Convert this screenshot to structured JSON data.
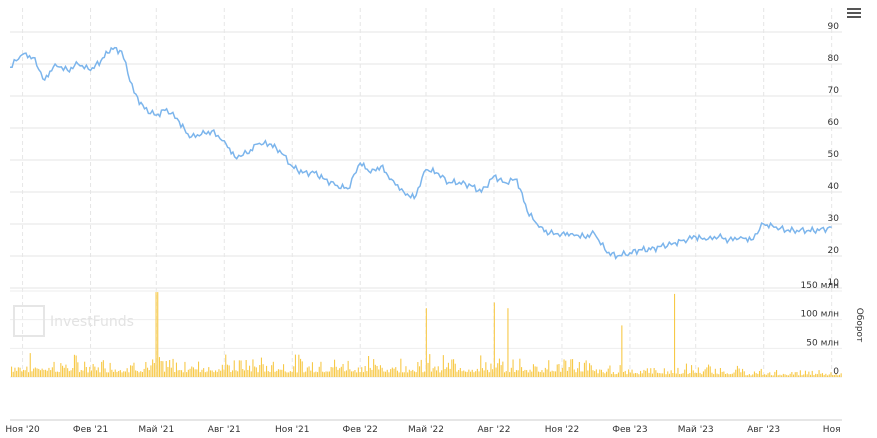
{
  "chart_data": [
    {
      "type": "line",
      "series": [
        {
          "color": "#7cb5ec",
          "x": [
            "2020-10-15",
            "2020-11-01",
            "2020-11-15",
            "2020-12-01",
            "2020-12-15",
            "2021-01-01",
            "2021-01-15",
            "2021-02-01",
            "2021-02-15",
            "2021-03-01",
            "2021-03-15",
            "2021-04-01",
            "2021-04-15",
            "2021-05-01",
            "2021-05-15",
            "2021-06-01",
            "2021-06-15",
            "2021-07-01",
            "2021-07-15",
            "2021-08-01",
            "2021-08-15",
            "2021-09-01",
            "2021-09-15",
            "2021-10-01",
            "2021-10-15",
            "2021-11-01",
            "2021-11-15",
            "2021-12-01",
            "2021-12-15",
            "2022-01-01",
            "2022-01-15",
            "2022-02-01",
            "2022-02-15",
            "2022-03-01",
            "2022-03-15",
            "2022-04-01",
            "2022-04-15",
            "2022-05-01",
            "2022-05-15",
            "2022-06-01",
            "2022-06-15",
            "2022-07-01",
            "2022-07-15",
            "2022-08-01",
            "2022-08-15",
            "2022-09-01",
            "2022-09-15",
            "2022-10-01",
            "2022-10-15",
            "2022-11-01",
            "2022-11-15",
            "2022-12-01",
            "2022-12-15",
            "2023-01-01",
            "2023-01-15",
            "2023-02-01",
            "2023-02-15",
            "2023-03-01",
            "2023-03-15",
            "2023-04-01",
            "2023-04-15",
            "2023-05-01",
            "2023-05-15",
            "2023-06-01",
            "2023-06-15",
            "2023-07-01",
            "2023-07-15",
            "2023-08-01",
            "2023-08-15",
            "2023-09-01",
            "2023-09-15",
            "2023-10-01",
            "2023-10-15",
            "2023-11-01"
          ],
          "values": [
            79,
            83,
            82,
            75,
            80,
            78,
            80,
            78,
            81,
            85,
            84,
            71,
            66,
            64,
            66,
            62,
            57,
            58,
            59,
            56,
            51,
            52,
            55,
            55,
            53,
            48,
            46,
            46,
            44,
            42,
            41,
            49,
            46,
            48,
            44,
            40,
            38,
            47,
            46,
            43,
            43,
            42,
            40,
            45,
            43,
            44,
            34,
            29,
            27,
            27,
            27,
            26,
            27,
            21,
            20,
            21,
            22,
            22,
            23,
            24,
            25,
            26,
            25,
            26,
            25,
            26,
            25,
            30,
            29,
            28,
            28,
            28,
            28,
            29
          ]
        }
      ],
      "ylim": [
        10,
        90
      ],
      "yticks": [
        "10",
        "20",
        "30",
        "40",
        "50",
        "60",
        "70",
        "80",
        "90"
      ],
      "xticks": [
        "Ноя '20",
        "Фев '21",
        "Май '21",
        "Авг '21",
        "Ноя '21",
        "Фев '22",
        "Май '22",
        "Авг '22",
        "Ноя '22",
        "Фев '23",
        "Май '23",
        "Авг '23",
        "Ноя"
      ],
      "grid": true
    },
    {
      "type": "bar",
      "ylabel": "Оборот",
      "yticks": [
        "0",
        "50 млн",
        "100 млн",
        "150 млн"
      ],
      "ylim": [
        0,
        150000000
      ],
      "color": "#f7c948",
      "spikes": [
        {
          "date": "2021-05-01",
          "value": 148000000
        },
        {
          "date": "2022-05-01",
          "value": 120000000
        },
        {
          "date": "2022-08-01",
          "value": 130000000
        },
        {
          "date": "2022-08-20",
          "value": 120000000
        },
        {
          "date": "2023-01-20",
          "value": 90000000
        },
        {
          "date": "2023-04-01",
          "value": 145000000
        }
      ],
      "typical_daily_range": [
        8000000,
        45000000
      ]
    }
  ],
  "watermark": "InvestFunds",
  "menu_icon": "hamburger-menu-icon"
}
